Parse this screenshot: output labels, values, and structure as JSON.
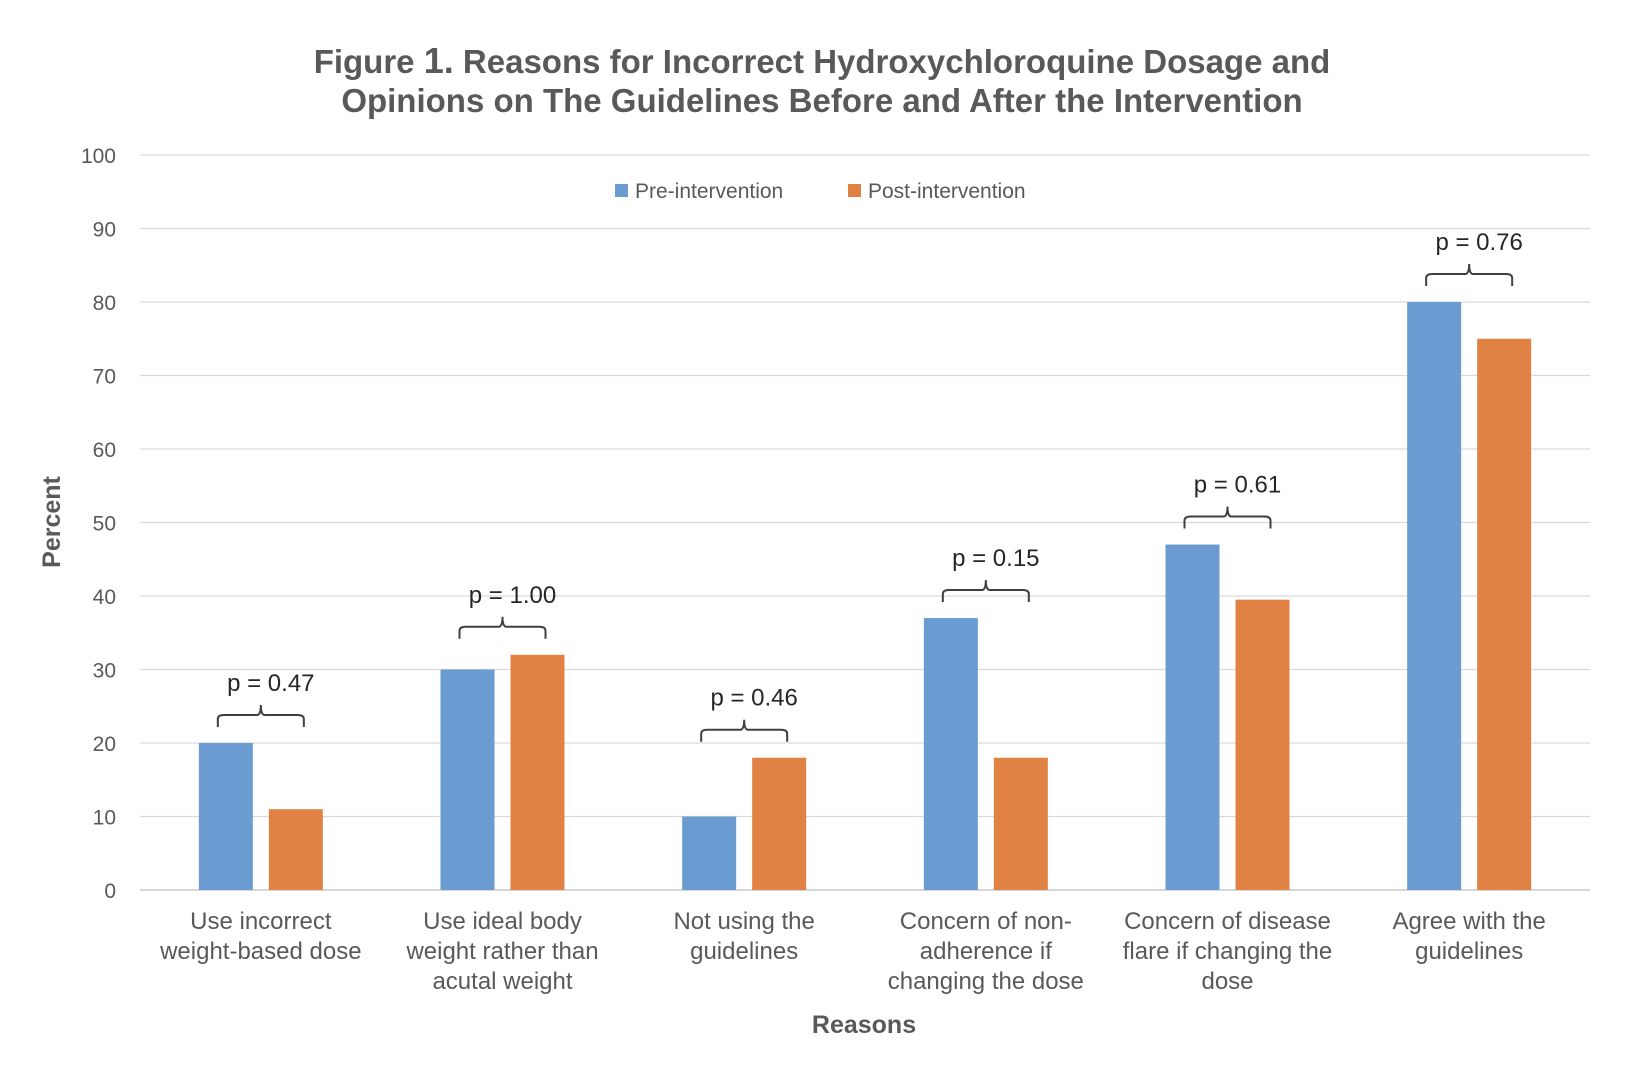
{
  "chart_data": {
    "type": "bar",
    "title_prefix": "Figure ",
    "title_number": "1.",
    "title_line1_rest": " Reasons for Incorrect Hydroxychloroquine Dosage and",
    "title_line2": "Opinions on The Guidelines Before and After the Intervention",
    "xlabel": "Reasons",
    "ylabel": "Percent",
    "ylim": [
      0,
      100
    ],
    "yticks": [
      "0",
      "10",
      "20",
      "30",
      "40",
      "50",
      "60",
      "70",
      "80",
      "90",
      "100"
    ],
    "grid": true,
    "legend_position": "top-center",
    "categories": [
      [
        "Use incorrect",
        "weight-based dose"
      ],
      [
        "Use ideal body",
        "weight rather than",
        "acutal weight"
      ],
      [
        "Not using the",
        "guidelines"
      ],
      [
        "Concern of non-",
        "adherence if",
        "changing the dose"
      ],
      [
        "Concern of disease",
        "flare if changing the",
        "dose"
      ],
      [
        "Agree with  the",
        "guidelines"
      ]
    ],
    "series": [
      {
        "name": "Pre-intervention",
        "color": "#6a9bd1",
        "values": [
          20,
          30,
          10,
          37,
          47,
          80
        ]
      },
      {
        "name": "Post-intervention",
        "color": "#e08244",
        "values": [
          11,
          32,
          18,
          18,
          39.5,
          75
        ]
      }
    ],
    "annotations": [
      "p = 0.47",
      "p = 1.00",
      "p = 0.46",
      "p = 0.15",
      "p = 0.61",
      "p = 0.76"
    ]
  }
}
